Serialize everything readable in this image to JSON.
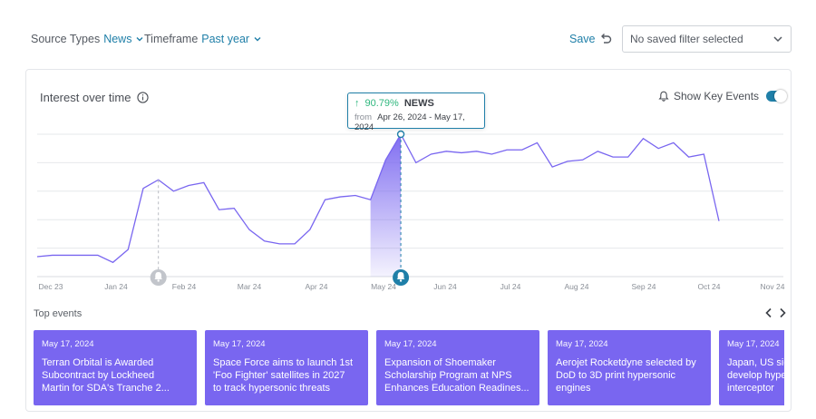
{
  "filters": {
    "source": {
      "label": "Source Types",
      "value": "News"
    },
    "timeframe": {
      "label": "Timeframe",
      "value": "Past year"
    }
  },
  "toolbar": {
    "save_label": "Save",
    "saved_filter_placeholder": "No saved filter selected"
  },
  "card": {
    "title": "Interest over time",
    "key_events_label": "Show Key Events",
    "key_events_on": true
  },
  "tooltip": {
    "change": "90.79%",
    "series": "NEWS",
    "from_label": "from",
    "range": "Apr 26, 2024 - May 17, 2024"
  },
  "chart_data": {
    "type": "area",
    "x_ticks": [
      "Dec 23",
      "Jan 24",
      "Feb 24",
      "Mar 24",
      "Apr 24",
      "May 24",
      "Jun 24",
      "Jul 24",
      "Aug 24",
      "Sep 24",
      "Oct 24",
      "Nov 24"
    ],
    "y_range": [
      0,
      100
    ],
    "grid": true,
    "values": [
      14,
      15,
      15,
      15,
      15,
      10,
      19,
      62,
      68,
      60,
      64,
      66,
      47,
      48,
      33,
      25,
      23,
      23,
      33,
      54,
      56,
      57,
      54,
      82,
      100,
      80,
      86,
      88,
      87,
      88,
      86,
      89,
      89,
      94,
      77,
      81,
      82,
      88,
      84,
      84,
      97,
      90,
      94,
      84,
      86,
      39
    ],
    "highlight_range": [
      22,
      24
    ],
    "key_event_markers": [
      8,
      24
    ],
    "series_color": "#7966f0",
    "accent": "#1f7fa8"
  },
  "top_events": {
    "label": "Top events",
    "items": [
      {
        "date": "May 17, 2024",
        "title": "Terran Orbital is Awarded\nSubcontract by Lockheed\nMartin for SDA's Tranche 2..."
      },
      {
        "date": "May 17, 2024",
        "title": "Space Force aims to launch 1st\n'Foo Fighter' satellites in 2027\nto track hypersonic threats"
      },
      {
        "date": "May 17, 2024",
        "title": "Expansion of Shoemaker\nScholarship Program at NPS\nEnhances Education Readines..."
      },
      {
        "date": "May 17, 2024",
        "title": "Aerojet Rocketdyne selected by\nDoD to 3D print hypersonic\nengines"
      },
      {
        "date": "May 17, 2024",
        "title": "Japan, US sig\ndevelop hype\ninterceptor"
      }
    ]
  }
}
